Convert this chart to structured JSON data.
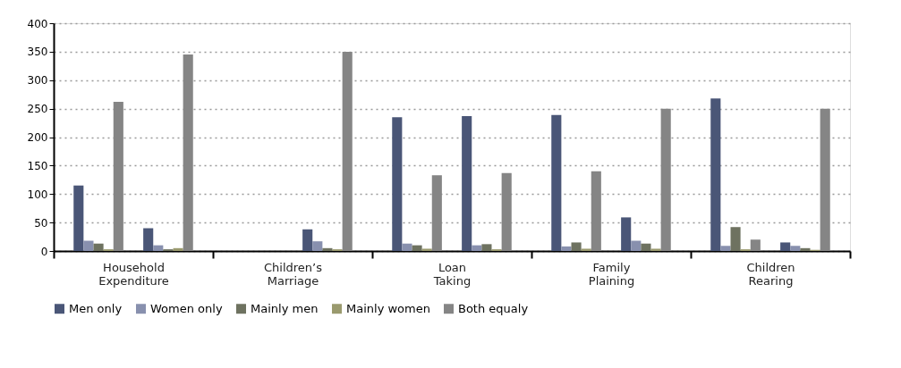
{
  "chart_data": {
    "type": "bar",
    "categories": [
      "Household Expenditure",
      "Children’s Marriage",
      "Loan Taking",
      "Family Plaining",
      "Children Rearing"
    ],
    "series": [
      {
        "name": "Men only",
        "color": "#4a5677",
        "values": [
          115,
          null,
          235,
          239,
          268
        ]
      },
      {
        "name": "Women only",
        "color": "#8890ae",
        "values": [
          18,
          null,
          13,
          8,
          9
        ]
      },
      {
        "name": "Mainly men",
        "color": "#6e7260",
        "values": [
          13,
          null,
          10,
          15,
          42
        ]
      },
      {
        "name": "Mainly women",
        "color": "#9a9a6e",
        "values": [
          3,
          null,
          4,
          4,
          3
        ]
      },
      {
        "name": "Both equaly",
        "color": "#858585",
        "values": [
          262,
          null,
          133,
          140,
          20
        ]
      },
      {
        "color": "#4a5677",
        "values": [
          40,
          38,
          237,
          59,
          15
        ]
      },
      {
        "color": "#8890ae",
        "values": [
          10,
          17,
          10,
          18,
          9
        ]
      },
      {
        "color": "#6e7260",
        "values": [
          3,
          5,
          12,
          13,
          5
        ]
      },
      {
        "color": "#9a9a6e",
        "values": [
          5,
          3,
          3,
          4,
          2
        ]
      },
      {
        "color": "#858585",
        "values": [
          345,
          350,
          137,
          250,
          250
        ]
      }
    ],
    "ylim": [
      0,
      400
    ],
    "yticks": [
      0,
      50,
      100,
      150,
      200,
      250,
      300,
      350,
      400
    ],
    "grid": "y",
    "legend": "bottom"
  }
}
